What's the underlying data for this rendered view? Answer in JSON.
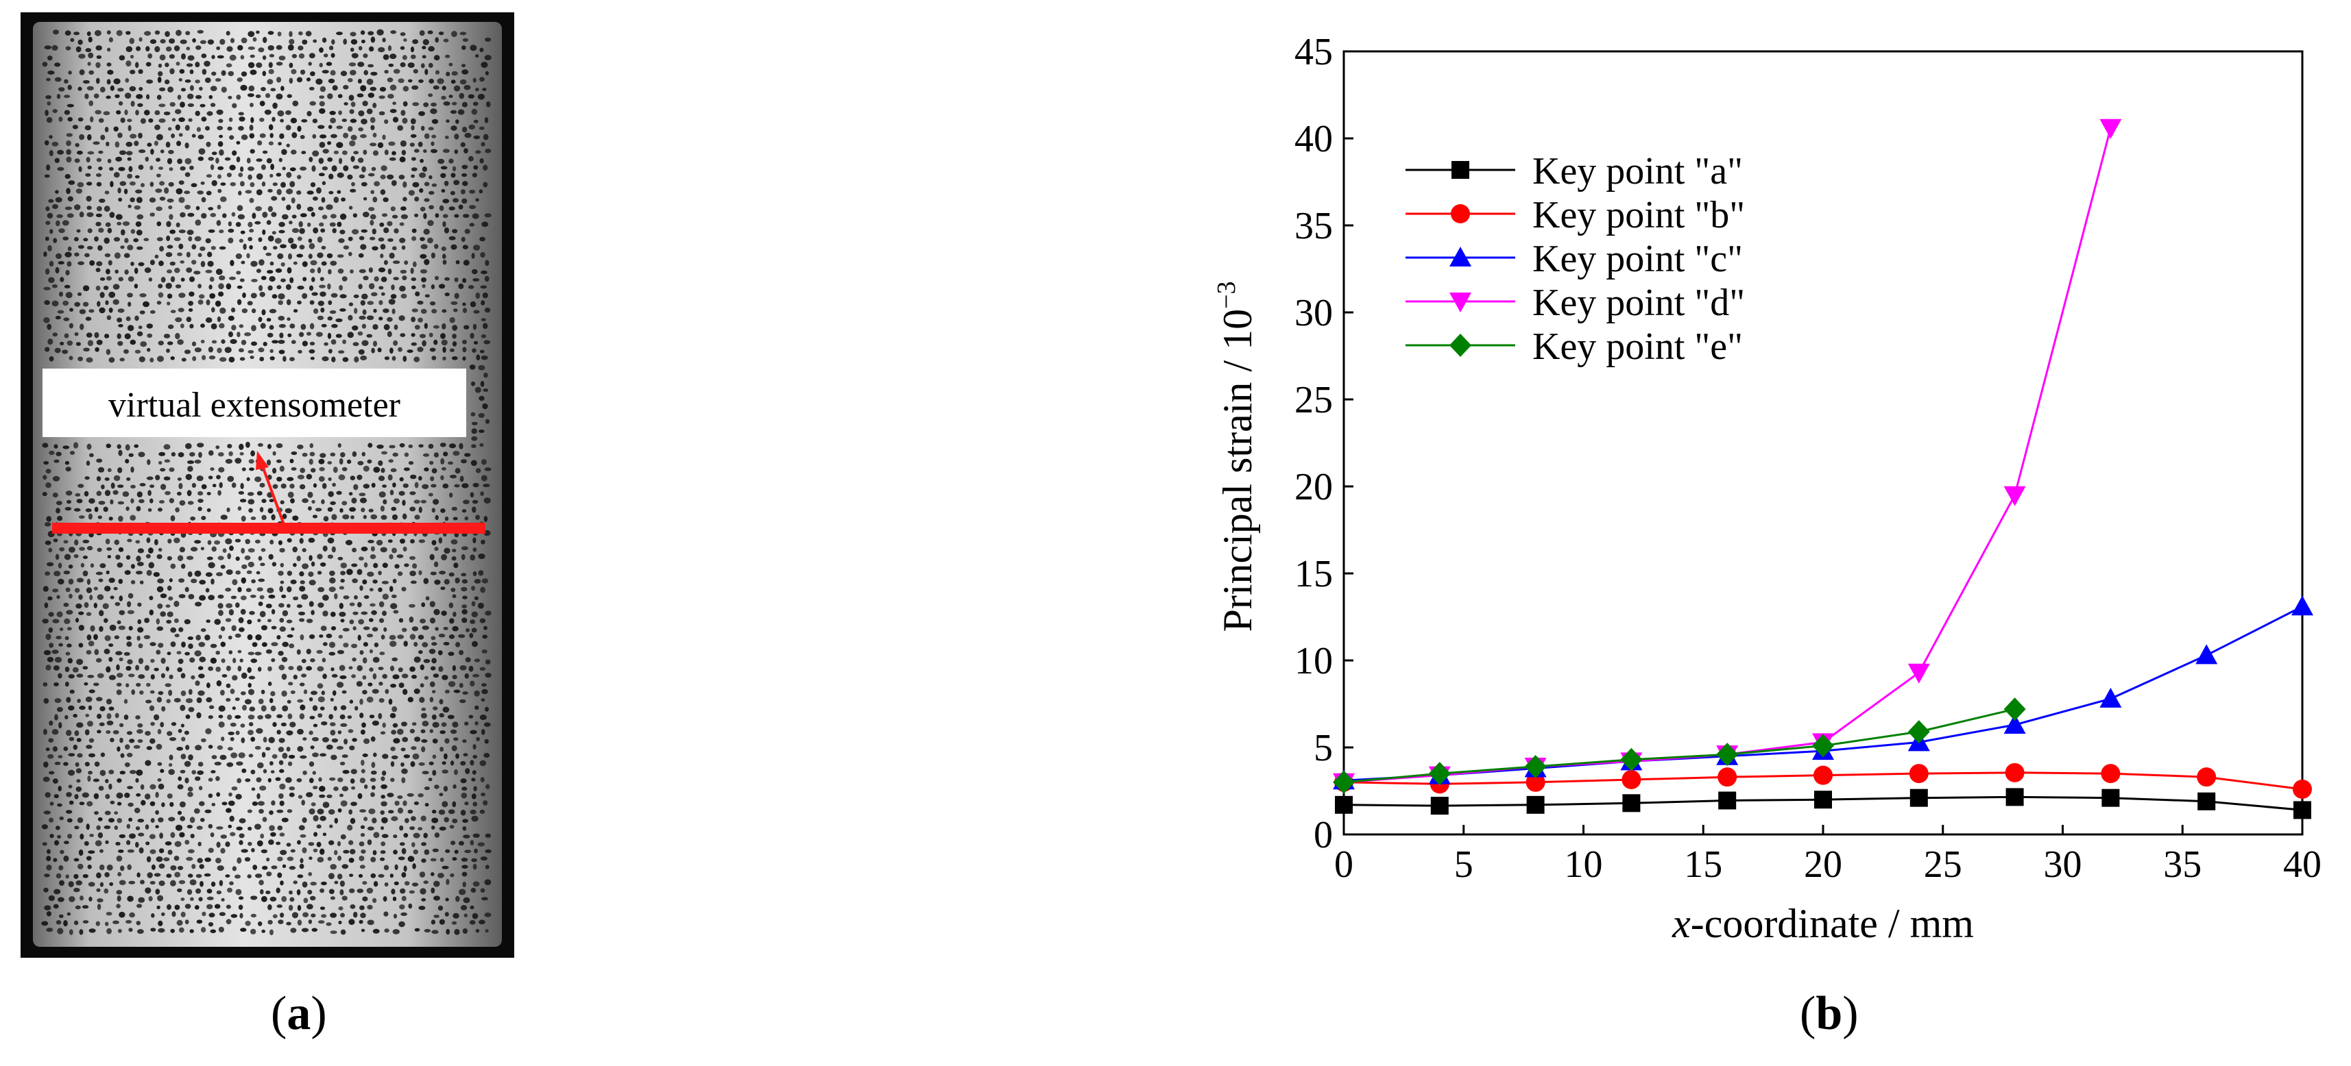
{
  "panel_a": {
    "annotation": "virtual extensometer",
    "caption": "(a)",
    "colors": {
      "extensometer": "#ff1a1a",
      "specimen": "#cfcfcf",
      "frame": "#0a0a0a",
      "speckle": "#1c1c1c"
    }
  },
  "panel_b": {
    "caption": "(b)"
  },
  "chart_data": {
    "type": "line",
    "xlabel_italic": "x",
    "xlabel": "-coordinate / mm",
    "ylabel": "Principal strain / 10",
    "ylabel_exp": "−3",
    "xlim": [
      0,
      40
    ],
    "ylim": [
      0,
      45
    ],
    "xticks": [
      "0",
      "5",
      "10",
      "15",
      "20",
      "25",
      "30",
      "35",
      "40"
    ],
    "yticks": [
      "0",
      "5",
      "10",
      "15",
      "20",
      "25",
      "30",
      "35",
      "40",
      "45"
    ],
    "legend_position": "top-left",
    "grid": false,
    "series": [
      {
        "name": "Key point \"a\"",
        "color": "#000000",
        "marker": "square",
        "x": [
          0,
          4,
          8,
          12,
          16,
          20,
          24,
          28,
          32,
          36,
          40
        ],
        "y": [
          1.7,
          1.65,
          1.7,
          1.8,
          1.95,
          2.0,
          2.1,
          2.15,
          2.1,
          1.9,
          1.4
        ]
      },
      {
        "name": "Key point \"b\"",
        "color": "#ff0000",
        "marker": "circle",
        "x": [
          0,
          4,
          8,
          12,
          16,
          20,
          24,
          28,
          32,
          36,
          40
        ],
        "y": [
          3.0,
          2.9,
          3.0,
          3.15,
          3.3,
          3.4,
          3.5,
          3.55,
          3.5,
          3.3,
          2.6
        ]
      },
      {
        "name": "Key point \"c\"",
        "color": "#0000ff",
        "marker": "triangle-up",
        "x": [
          0,
          4,
          8,
          12,
          16,
          20,
          24,
          28,
          32,
          36,
          40
        ],
        "y": [
          3.1,
          3.4,
          3.8,
          4.2,
          4.5,
          4.8,
          5.3,
          6.3,
          7.8,
          10.3,
          13.1
        ]
      },
      {
        "name": "Key point \"d\"",
        "color": "#ff00ff",
        "marker": "triangle-down",
        "x": [
          0,
          4,
          8,
          12,
          16,
          20,
          24,
          28,
          32
        ],
        "y": [
          3.0,
          3.4,
          3.9,
          4.2,
          4.6,
          5.3,
          9.3,
          19.5,
          40.6
        ]
      },
      {
        "name": "Key point \"e\"",
        "color": "#008000",
        "marker": "diamond",
        "x": [
          0,
          4,
          8,
          12,
          16,
          20,
          24,
          28
        ],
        "y": [
          3.0,
          3.5,
          3.9,
          4.3,
          4.6,
          5.1,
          5.9,
          7.2
        ]
      }
    ]
  }
}
